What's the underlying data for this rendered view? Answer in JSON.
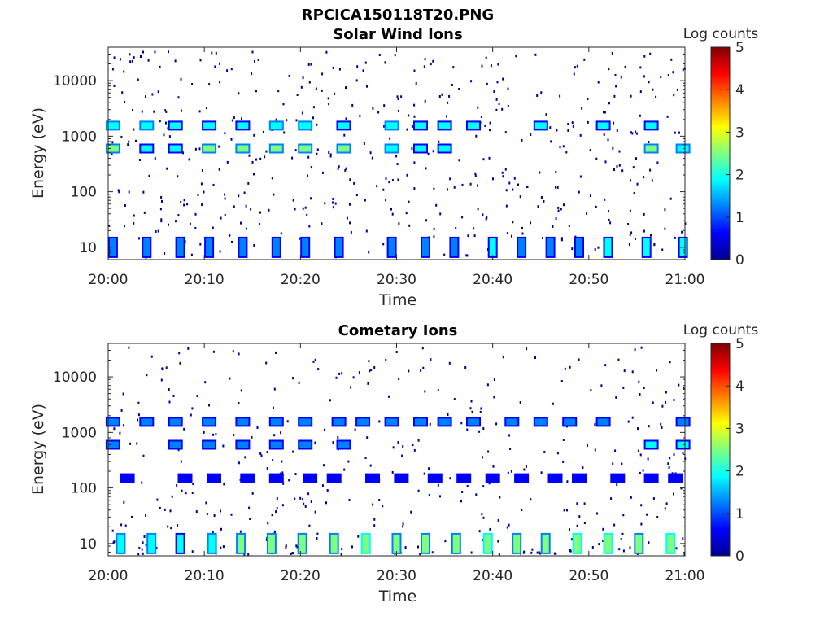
{
  "figure_title": "RPCICA150118T20.PNG",
  "colormap": [
    "#00008f",
    "#0000ff",
    "#007fff",
    "#00ffff",
    "#7fff7f",
    "#ffff00",
    "#ff7f00",
    "#ff0000",
    "#7f0000"
  ],
  "chart_data": [
    {
      "type": "heatmap",
      "title": "Solar Wind Ions",
      "xlabel": "Time",
      "ylabel": "Energy (eV)",
      "x_range": [
        "20:00",
        "21:00"
      ],
      "x_ticks": [
        "20:00",
        "20:10",
        "20:20",
        "20:30",
        "20:40",
        "20:50",
        "21:00"
      ],
      "y_scale": "log",
      "ylim": [
        6,
        40000
      ],
      "y_ticks": [
        {
          "value": 10,
          "label": "10"
        },
        {
          "value": 100,
          "label": "100"
        },
        {
          "value": 1000,
          "label": "1000"
        },
        {
          "value": 10000,
          "label": "10000"
        }
      ],
      "colorbar": {
        "label": "Log counts",
        "min": 0,
        "max": 5,
        "ticks": [
          "0",
          "1",
          "2",
          "3",
          "4",
          "5"
        ]
      },
      "bands": [
        {
          "energy_ev": 600,
          "minutes": [
            0.5,
            4,
            7,
            10.5,
            14,
            17.5,
            20.5,
            24.5,
            29.5,
            32.5,
            35,
            56.5,
            59.8
          ],
          "log_counts": [
            2.2,
            1.6,
            1.6,
            2.4,
            2.3,
            2.5,
            2.4,
            2.2,
            2.1,
            1.8,
            1.7,
            2.2,
            2.0
          ]
        },
        {
          "energy_ev": 1550,
          "minutes": [
            0.5,
            4,
            7,
            10.5,
            14,
            17.5,
            20.5,
            24.5,
            29.5,
            32.5,
            35,
            38,
            45,
            51.5,
            56.5
          ],
          "log_counts": [
            2.0,
            2.0,
            1.8,
            1.8,
            1.9,
            2.0,
            2.0,
            1.8,
            2.0,
            1.6,
            1.8,
            1.6,
            1.8,
            1.7,
            1.6
          ]
        },
        {
          "energy_ev": 10,
          "minutes": [
            0.5,
            4,
            7.5,
            10.5,
            14,
            17.5,
            20.5,
            24,
            29.5,
            33,
            36,
            40,
            43,
            46,
            49,
            52,
            56,
            59.8
          ],
          "log_counts": [
            1.0,
            1.0,
            1.0,
            1.0,
            1.0,
            1.0,
            1.2,
            1.1,
            1.2,
            1.2,
            1.0,
            1.7,
            1.2,
            1.0,
            1.1,
            1.6,
            1.6,
            1.7
          ]
        }
      ]
    },
    {
      "type": "heatmap",
      "title": "Cometary Ions",
      "xlabel": "Time",
      "ylabel": "Energy (eV)",
      "x_range": [
        "20:00",
        "21:00"
      ],
      "x_ticks": [
        "20:00",
        "20:10",
        "20:20",
        "20:30",
        "20:40",
        "20:50",
        "21:00"
      ],
      "y_scale": "log",
      "ylim": [
        6,
        40000
      ],
      "y_ticks": [
        {
          "value": 10,
          "label": "10"
        },
        {
          "value": 100,
          "label": "100"
        },
        {
          "value": 1000,
          "label": "1000"
        },
        {
          "value": 10000,
          "label": "10000"
        }
      ],
      "colorbar": {
        "label": "Log counts",
        "min": 0,
        "max": 5,
        "ticks": [
          "0",
          "1",
          "2",
          "3",
          "4",
          "5"
        ]
      },
      "bands": [
        {
          "energy_ev": 600,
          "minutes": [
            0.5,
            7,
            10.5,
            14,
            17.5,
            20.5,
            24.5,
            56.5,
            59.8
          ],
          "log_counts": [
            1.2,
            1.1,
            1.1,
            1.4,
            1.3,
            1.3,
            1.2,
            1.7,
            1.8
          ]
        },
        {
          "energy_ev": 1550,
          "minutes": [
            0.5,
            4,
            7,
            10.5,
            14,
            17.5,
            20.5,
            24,
            26.5,
            29.5,
            32.5,
            35,
            38,
            42,
            45,
            48,
            51.5,
            59.8
          ],
          "log_counts": [
            1.3,
            1.3,
            1.2,
            1.2,
            1.3,
            1.3,
            1.3,
            1.3,
            1.2,
            1.3,
            1.1,
            1.1,
            1.0,
            1.0,
            1.0,
            1.0,
            1.1,
            1.0
          ]
        },
        {
          "energy_ev": 10,
          "minutes": [
            1.3,
            4.5,
            7.5,
            10.8,
            13.8,
            17,
            20.2,
            23.5,
            26.8,
            30,
            33,
            36.2,
            39.5,
            42.5,
            45.5,
            48.8,
            52,
            55.2,
            58.5
          ],
          "log_counts": [
            2.0,
            2.0,
            1.9,
            2.0,
            2.2,
            2.2,
            2.3,
            2.4,
            2.6,
            2.4,
            2.3,
            2.4,
            2.6,
            2.2,
            2.3,
            2.6,
            2.8,
            2.4,
            2.6
          ]
        },
        {
          "energy_ev": 150,
          "minutes": [
            2,
            8,
            11,
            14.5,
            17.5,
            21,
            23.5,
            27.5,
            30.5,
            34,
            37,
            40,
            43,
            46.5,
            49,
            53,
            56.5,
            59
          ],
          "log_counts": [
            0.9,
            0.8,
            0.9,
            0.9,
            0.8,
            0.8,
            0.9,
            0.8,
            0.9,
            0.7,
            0.8,
            0.7,
            0.7,
            0.7,
            0.7,
            0.7,
            0.9,
            0.9
          ]
        }
      ]
    }
  ]
}
